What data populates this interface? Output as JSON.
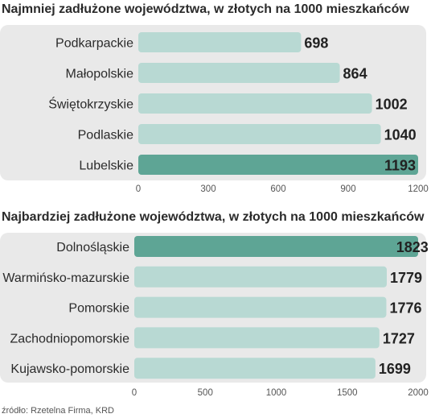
{
  "source": "źródło: Rzetelna Firma, KRD",
  "colors": {
    "bar": "#b8d9d3",
    "highlight": "#5ea595",
    "panel": "#e9e9e9",
    "value_text": "#222222",
    "value_text_on_highlight": "#ffffff"
  },
  "chart_data": [
    {
      "type": "bar",
      "orientation": "horizontal",
      "title": "Najmniej zadłużone województwa, w złotych na 1000 mieszkańców",
      "categories": [
        "Podkarpackie",
        "Małopolskie",
        "Świętokrzyskie",
        "Podlaskie",
        "Lubelskie"
      ],
      "values": [
        698,
        864,
        1002,
        1040,
        1193
      ],
      "value_labels": [
        "698",
        "864",
        "1002",
        "1040",
        "1193"
      ],
      "highlight_index": 4,
      "xlim": [
        0,
        1200
      ],
      "ticks": [
        0,
        300,
        600,
        900,
        1200
      ],
      "tick_labels": [
        "0",
        "300",
        "600",
        "900",
        "1200"
      ],
      "grid": false
    },
    {
      "type": "bar",
      "orientation": "horizontal",
      "title": "Najbardziej zadłużone województwa, w złotych na 1000 mieszkańców",
      "categories": [
        "Dolnośląskie",
        "Warmińsko-mazurskie",
        "Pomorskie",
        "Zachodniopomorskie",
        "Kujawsko-pomorskie"
      ],
      "values": [
        1823,
        1779,
        1776,
        1727,
        1699
      ],
      "value_labels": [
        "1823",
        "1779",
        "1776",
        "1727",
        "1699"
      ],
      "highlight_index": 0,
      "xlim": [
        0,
        2000
      ],
      "ticks": [
        0,
        500,
        1000,
        1500,
        2000
      ],
      "tick_labels": [
        "0",
        "500",
        "1000",
        "1500",
        "2000"
      ],
      "grid": false
    }
  ]
}
